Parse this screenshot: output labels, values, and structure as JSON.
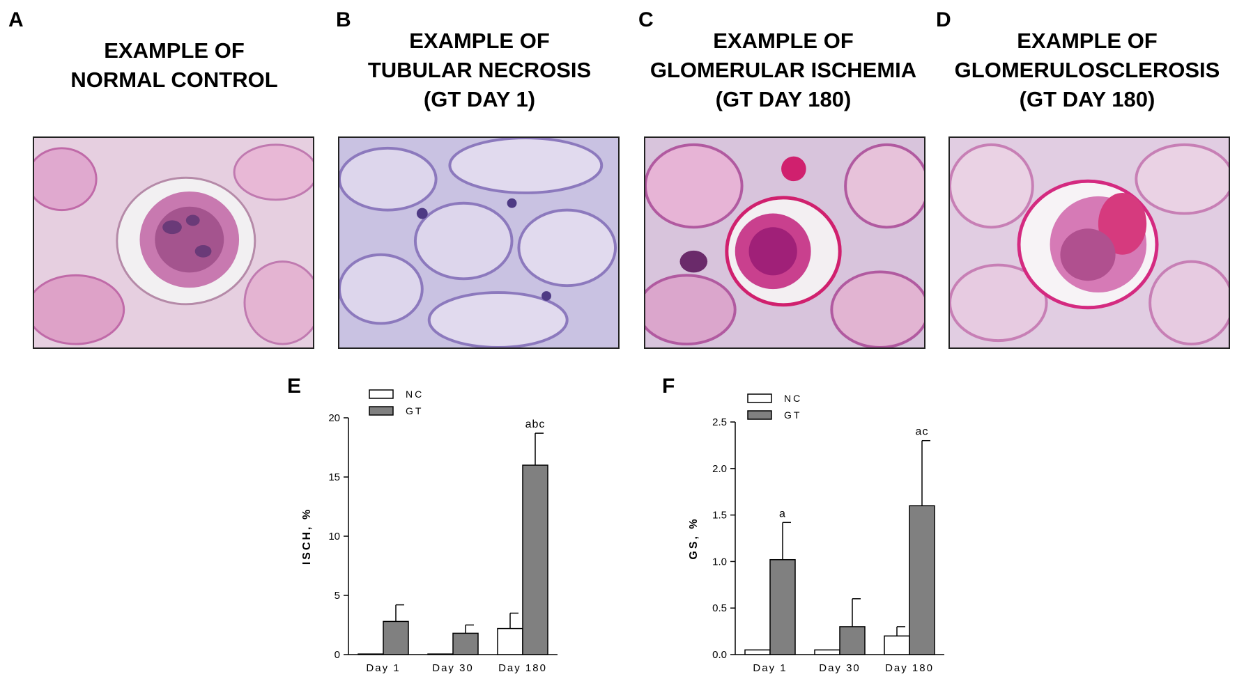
{
  "panels": [
    {
      "letter": "A",
      "title_lines": [
        "EXAMPLE OF",
        "NORMAL CONTROL"
      ],
      "image_name": "normal-control-histology-image"
    },
    {
      "letter": "B",
      "title_lines": [
        "EXAMPLE OF",
        "TUBULAR NECROSIS",
        "(GT DAY 1)"
      ],
      "image_name": "tubular-necrosis-histology-image"
    },
    {
      "letter": "C",
      "title_lines": [
        "EXAMPLE OF",
        "GLOMERULAR ISCHEMIA",
        "(GT DAY 180)"
      ],
      "image_name": "glomerular-ischemia-histology-image"
    },
    {
      "letter": "D",
      "title_lines": [
        "EXAMPLE OF",
        "GLOMERULOSCLEROSIS",
        "(GT DAY 180)"
      ],
      "image_name": "glomerulosclerosis-histology-image"
    }
  ],
  "chart_data": [
    {
      "panel": "E",
      "type": "bar",
      "categories": [
        "Day 1",
        "Day 30",
        "Day 180"
      ],
      "ylabel": "ISCH, %",
      "ylim": [
        0,
        20
      ],
      "yticks": [
        "0",
        "5",
        "10",
        "15",
        "20"
      ],
      "legend_position": "top-left",
      "series": [
        {
          "name": "NC",
          "color": "#ffffff",
          "values": [
            0.05,
            0.05,
            2.2
          ],
          "errors": [
            0,
            0,
            1.3
          ]
        },
        {
          "name": "GT",
          "color": "#808080",
          "values": [
            2.8,
            1.8,
            16.0
          ],
          "errors": [
            1.4,
            0.7,
            2.7
          ]
        }
      ],
      "annotations": [
        {
          "category": 2,
          "series": 1,
          "text": "abc"
        }
      ]
    },
    {
      "panel": "F",
      "type": "bar",
      "categories": [
        "Day 1",
        "Day 30",
        "Day 180"
      ],
      "ylabel": "GS, %",
      "ylim": [
        0,
        2.5
      ],
      "yticks": [
        "0.0",
        "0.5",
        "1.0",
        "1.5",
        "2.0",
        "2.5"
      ],
      "legend_position": "top-left",
      "series": [
        {
          "name": "NC",
          "color": "#ffffff",
          "values": [
            0.05,
            0.05,
            0.2
          ],
          "errors": [
            0,
            0,
            0.1
          ]
        },
        {
          "name": "GT",
          "color": "#808080",
          "values": [
            1.02,
            0.3,
            1.6
          ],
          "errors": [
            0.4,
            0.3,
            0.7
          ]
        }
      ],
      "annotations": [
        {
          "category": 0,
          "series": 1,
          "text": "a"
        },
        {
          "category": 2,
          "series": 1,
          "text": "ac"
        }
      ]
    }
  ]
}
